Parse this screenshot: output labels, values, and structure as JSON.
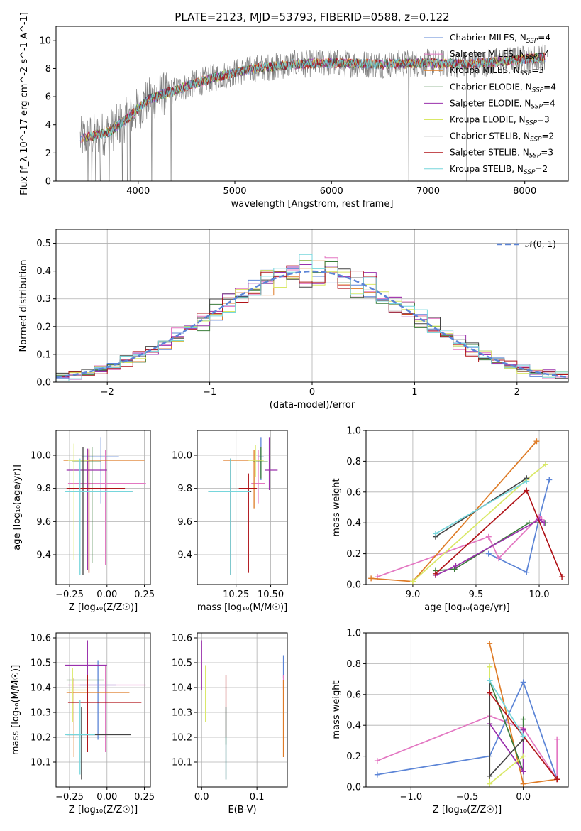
{
  "figure_title": "PLATE=2123, MJD=53793, FIBERID=0588, z=0.122",
  "colors": {
    "chabrier_miles": "#5b84d6",
    "salpeter_miles": "#e377c2",
    "kroupa_miles": "#de7b26",
    "chabrier_elodie": "#3b7d3b",
    "salpeter_elodie": "#9a30ac",
    "kroupa_elodie": "#d9e865",
    "chabrier_stelib": "#444444",
    "salpeter_stelib": "#b01318",
    "kroupa_stelib": "#76d6dc",
    "data": "#7f7f7f",
    "gaussian": "#5b84d6"
  },
  "models": [
    {
      "label": "Chabrier MILES, N",
      "sub": "SSP",
      "suffix": "=4",
      "color": "#5b84d6"
    },
    {
      "label": "Salpeter MILES, N",
      "sub": "SSP",
      "suffix": "=4",
      "color": "#e377c2"
    },
    {
      "label": "Kroupa MILES, N",
      "sub": "SSP",
      "suffix": "=3",
      "color": "#de7b26"
    },
    {
      "label": "Chabrier ELODIE, N",
      "sub": "SSP",
      "suffix": "=4",
      "color": "#3b7d3b"
    },
    {
      "label": "Salpeter ELODIE, N",
      "sub": "SSP",
      "suffix": "=4",
      "color": "#9a30ac"
    },
    {
      "label": "Kroupa ELODIE, N",
      "sub": "SSP",
      "suffix": "=3",
      "color": "#d9e865"
    },
    {
      "label": "Chabrier STELIB, N",
      "sub": "SSP",
      "suffix": "=2",
      "color": "#444444"
    },
    {
      "label": "Salpeter STELIB, N",
      "sub": "SSP",
      "suffix": "=3",
      "color": "#b01318"
    },
    {
      "label": "Kroupa STELIB, N",
      "sub": "SSP",
      "suffix": "=2",
      "color": "#76d6dc"
    }
  ],
  "chart_data": [
    {
      "id": "spectrum",
      "type": "line",
      "xlabel": "wavelength [Angstrom, rest frame]",
      "ylabel": "Flux [f_λ 10^-17 erg cm^-2 s^-1 A^-1]",
      "xlim": [
        3150,
        8450
      ],
      "ylim": [
        0,
        11
      ],
      "xticks": [
        4000,
        5000,
        6000,
        7000,
        8000
      ],
      "yticks": [
        0,
        2,
        4,
        6,
        8,
        10
      ],
      "grid": false,
      "legend": "upper right",
      "continuum_knots": [
        [
          3400,
          3.0
        ],
        [
          3700,
          3.5
        ],
        [
          3900,
          4.5
        ],
        [
          4100,
          5.8
        ],
        [
          4400,
          6.5
        ],
        [
          4800,
          7.4
        ],
        [
          5200,
          8.0
        ],
        [
          5600,
          8.3
        ],
        [
          6000,
          8.4
        ],
        [
          6500,
          8.3
        ],
        [
          7000,
          8.4
        ],
        [
          7400,
          8.3
        ],
        [
          8200,
          8.8
        ]
      ],
      "data_range": [
        3400,
        8210
      ],
      "deep_absorptions": [
        3480,
        3520,
        3560,
        3610,
        3700,
        3835,
        3890,
        3915,
        4140,
        4340,
        6800,
        7400
      ]
    },
    {
      "id": "residuals",
      "type": "histogram",
      "xlabel": "(data-model)/error",
      "ylabel": "Normed distribution",
      "xlim": [
        -2.5,
        2.5
      ],
      "ylim": [
        0,
        0.55
      ],
      "xticks": [
        -2,
        -1,
        0,
        1,
        2
      ],
      "yticks": [
        0.0,
        0.1,
        0.2,
        0.3,
        0.4,
        0.5
      ],
      "bin_width": 0.125,
      "grid": true,
      "legend_label": "𝒩(0, 1)",
      "legend_position": "upper right"
    },
    {
      "id": "age_vs_Z",
      "type": "errorbar",
      "xlabel": "Z [log₁₀(Z/Z☉)]",
      "ylabel": "age  [log₁₀(age/yr)]",
      "xlim": [
        -0.34,
        0.29
      ],
      "ylim": [
        9.22,
        10.15
      ],
      "xticks": [
        -0.25,
        0.0,
        0.25
      ],
      "yticks": [
        9.4,
        9.6,
        9.8,
        10.0
      ],
      "points": [
        {
          "x": -0.04,
          "xerr": [
            0.13,
            0.12
          ],
          "y": 9.99,
          "yerr": [
            0.28,
            0.12
          ]
        },
        {
          "x": -0.01,
          "xerr": [
            0.25,
            0.27
          ],
          "y": 9.83,
          "yerr": [
            0.49,
            0.2
          ]
        },
        {
          "x": -0.12,
          "xerr": [
            0.17,
            0.37
          ],
          "y": 9.97,
          "yerr": [
            0.68,
            0.06
          ]
        },
        {
          "x": -0.1,
          "xerr": [
            0.13,
            0.06
          ],
          "y": 9.96,
          "yerr": [
            0.61,
            0.09
          ]
        },
        {
          "x": -0.13,
          "xerr": [
            0.14,
            0.13
          ],
          "y": 9.91,
          "yerr": [
            0.6,
            0.13
          ]
        },
        {
          "x": -0.22,
          "xerr": [
            0.04,
            0.1
          ],
          "y": 9.97,
          "yerr": [
            0.6,
            0.1
          ]
        },
        {
          "x": -0.16,
          "xerr": [
            0.1,
            0.33
          ],
          "y": 9.78,
          "yerr": [
            0.5,
            0.27
          ]
        },
        {
          "x": -0.12,
          "xerr": [
            0.15,
            0.24
          ],
          "y": 9.8,
          "yerr": [
            0.51,
            0.24
          ]
        },
        {
          "x": -0.18,
          "xerr": [
            0.1,
            0.35
          ],
          "y": 9.78,
          "yerr": [
            0.5,
            0.2
          ]
        }
      ]
    },
    {
      "id": "age_vs_mass",
      "type": "errorbar",
      "xlabel": "mass [log₁₀(M/M☉)]",
      "ylabel": "",
      "xlim": [
        9.97,
        10.62
      ],
      "ylim": [
        9.22,
        10.15
      ],
      "xticks": [
        10.25,
        10.5
      ],
      "yticks": [
        9.4,
        9.6,
        9.8,
        10.0
      ],
      "points": [
        {
          "x": 10.43,
          "xerr": [
            0.02,
            0.02
          ],
          "y": 9.99,
          "yerr": [
            0.14,
            0.12
          ]
        },
        {
          "x": 10.41,
          "xerr": [
            0.05,
            0.05
          ],
          "y": 9.83,
          "yerr": [
            0.12,
            0.2
          ]
        },
        {
          "x": 10.38,
          "xerr": [
            0.22,
            0.06
          ],
          "y": 9.97,
          "yerr": [
            0.29,
            0.06
          ]
        },
        {
          "x": 10.43,
          "xerr": [
            0.06,
            0.05
          ],
          "y": 9.96,
          "yerr": [
            0.1,
            0.09
          ]
        },
        {
          "x": 10.49,
          "xerr": [
            0.03,
            0.06
          ],
          "y": 9.91,
          "yerr": [
            0.12,
            0.2
          ]
        },
        {
          "x": 10.39,
          "xerr": [
            0.05,
            0.06
          ],
          "y": 9.97,
          "yerr": [
            0.1,
            0.09
          ]
        },
        {
          "x": 10.21,
          "xerr": [
            0.16,
            0.15
          ],
          "y": 9.78,
          "yerr": [
            0.5,
            0.2
          ]
        },
        {
          "x": 10.34,
          "xerr": [
            0.07,
            0.06
          ],
          "y": 9.8,
          "yerr": [
            0.51,
            0.09
          ]
        },
        {
          "x": 10.21,
          "xerr": [
            0.16,
            0.14
          ],
          "y": 9.78,
          "yerr": [
            0.5,
            0.2
          ]
        }
      ]
    },
    {
      "id": "weight_vs_age",
      "type": "line",
      "xlabel": "age  [log₁₀(age/yr)]",
      "ylabel": "mass weight",
      "xlim": [
        8.63,
        10.23
      ],
      "ylim": [
        0,
        1.0
      ],
      "xticks": [
        9.0,
        9.5,
        10.0
      ],
      "yticks": [
        0.0,
        0.2,
        0.4,
        0.6,
        0.8,
        1.0
      ],
      "series": [
        [
          [
            9.6,
            0.2
          ],
          [
            9.9,
            0.08
          ],
          [
            10.0,
            0.43
          ],
          [
            10.08,
            0.68
          ]
        ],
        [
          [
            8.72,
            0.05
          ],
          [
            9.6,
            0.31
          ],
          [
            9.68,
            0.17
          ],
          [
            10.0,
            0.44
          ],
          [
            10.02,
            0.42
          ]
        ],
        [
          [
            8.67,
            0.04
          ],
          [
            9.0,
            0.02
          ],
          [
            9.98,
            0.93
          ]
        ],
        [
          [
            9.18,
            0.09
          ],
          [
            9.33,
            0.1
          ],
          [
            9.92,
            0.4
          ],
          [
            10.05,
            0.4
          ]
        ],
        [
          [
            9.18,
            0.06
          ],
          [
            9.34,
            0.12
          ],
          [
            10.0,
            0.42
          ],
          [
            10.04,
            0.4
          ]
        ],
        [
          [
            9.0,
            0.02
          ],
          [
            9.9,
            0.68
          ],
          [
            10.05,
            0.78
          ]
        ],
        [
          [
            9.18,
            0.31
          ],
          [
            9.9,
            0.69
          ]
        ],
        [
          [
            9.18,
            0.07
          ],
          [
            9.9,
            0.61
          ],
          [
            10.18,
            0.05
          ]
        ],
        [
          [
            9.18,
            0.33
          ],
          [
            9.9,
            0.67
          ]
        ]
      ]
    },
    {
      "id": "mass_vs_Z",
      "type": "errorbar",
      "xlabel": "Z [log₁₀(Z/Z☉)]",
      "ylabel": "mass [log₁₀(M/M☉)]",
      "xlim": [
        -0.34,
        0.29
      ],
      "ylim": [
        10.0,
        10.62
      ],
      "xticks": [
        -0.25,
        0.0,
        0.25
      ],
      "yticks": [
        10.1,
        10.2,
        10.3,
        10.4,
        10.5,
        10.6
      ],
      "points": [
        {
          "x": -0.06,
          "xerr": [
            0.12,
            0.12
          ],
          "y": 10.41,
          "yerr": [
            0.22,
            0.1
          ]
        },
        {
          "x": -0.01,
          "xerr": [
            0.25,
            0.27
          ],
          "y": 10.41,
          "yerr": [
            0.27,
            0.08
          ]
        },
        {
          "x": -0.22,
          "xerr": [
            0.05,
            0.37
          ],
          "y": 10.38,
          "yerr": [
            0.26,
            0.06
          ]
        },
        {
          "x": -0.13,
          "xerr": [
            0.14,
            0.11
          ],
          "y": 10.43,
          "yerr": [
            0.18,
            0.05
          ]
        },
        {
          "x": -0.13,
          "xerr": [
            0.15,
            0.13
          ],
          "y": 10.49,
          "yerr": [
            0.23,
            0.1
          ]
        },
        {
          "x": -0.23,
          "xerr": [
            0.04,
            0.1
          ],
          "y": 10.39,
          "yerr": [
            0.13,
            0.09
          ]
        },
        {
          "x": -0.17,
          "xerr": [
            0.1,
            0.33
          ],
          "y": 10.21,
          "yerr": [
            0.18,
            0.11
          ]
        },
        {
          "x": -0.13,
          "xerr": [
            0.13,
            0.36
          ],
          "y": 10.34,
          "yerr": [
            0.2,
            0.11
          ]
        },
        {
          "x": -0.18,
          "xerr": [
            0.1,
            0.1
          ],
          "y": 10.21,
          "yerr": [
            0.16,
            0.14
          ]
        }
      ]
    },
    {
      "id": "mass_vs_ebv",
      "type": "errorbar",
      "xlabel": "E(B-V)",
      "ylabel": "",
      "xlim": [
        -0.008,
        0.155
      ],
      "ylim": [
        10.0,
        10.62
      ],
      "xticks": [
        0.0,
        0.1
      ],
      "yticks": [
        10.1,
        10.2,
        10.3,
        10.4,
        10.5,
        10.6
      ],
      "points": [
        {
          "x": 0.148,
          "xerr": [
            0,
            0
          ],
          "y": 10.47,
          "yerr": [
            0.03,
            0.06
          ]
        },
        {
          "x": 0.148,
          "xerr": [
            0,
            0
          ],
          "y": 10.42,
          "yerr": [
            0.03,
            0.03
          ]
        },
        {
          "x": 0.148,
          "xerr": [
            0,
            0
          ],
          "y": 10.38,
          "yerr": [
            0.26,
            0.05
          ]
        },
        {
          "x": 0.044,
          "xerr": [
            0,
            0
          ],
          "y": 10.25,
          "yerr": [
            0.08,
            0.07
          ]
        },
        {
          "x": 0.0,
          "xerr": [
            0,
            0
          ],
          "y": 10.49,
          "yerr": [
            0.1,
            0.1
          ]
        },
        {
          "x": 0.007,
          "xerr": [
            0,
            0
          ],
          "y": 10.39,
          "yerr": [
            0.13,
            0.1
          ]
        },
        {
          "x": 0.044,
          "xerr": [
            0,
            0
          ],
          "y": 10.21,
          "yerr": [
            0.18,
            0.11
          ]
        },
        {
          "x": 0.044,
          "xerr": [
            0,
            0
          ],
          "y": 10.34,
          "yerr": [
            0.14,
            0.11
          ]
        },
        {
          "x": 0.044,
          "xerr": [
            0,
            0
          ],
          "y": 10.21,
          "yerr": [
            0.18,
            0.11
          ]
        }
      ]
    },
    {
      "id": "weight_vs_Z",
      "type": "line",
      "xlabel": "Z [log₁₀(Z/Z☉)]",
      "ylabel": "mass weight",
      "xlim": [
        -1.4,
        0.4
      ],
      "ylim": [
        0,
        1.0
      ],
      "xticks": [
        -1.0,
        -0.5,
        0.0
      ],
      "yticks": [
        0.0,
        0.2,
        0.4,
        0.6,
        0.8,
        1.0
      ],
      "series": [
        [
          [
            -1.3,
            0.08
          ],
          [
            -0.3,
            0.2
          ],
          [
            0.0,
            0.68
          ],
          [
            0.3,
            0.05
          ]
        ],
        [
          [
            -1.3,
            0.17
          ],
          [
            -0.3,
            0.46
          ],
          [
            0.0,
            0.38
          ],
          [
            0.3,
            0.05
          ],
          [
            0.3,
            0.31
          ]
        ],
        [
          [
            -0.3,
            0.93
          ],
          [
            0.0,
            0.02
          ],
          [
            0.3,
            0.05
          ]
        ],
        [
          [
            -0.3,
            0.69
          ],
          [
            0.0,
            0.1
          ],
          [
            0.0,
            0.44
          ]
        ],
        [
          [
            -0.3,
            0.41
          ],
          [
            0.0,
            0.1
          ],
          [
            0.0,
            0.37
          ]
        ],
        [
          [
            -0.3,
            0.78
          ],
          [
            -0.3,
            0.02
          ],
          [
            0.0,
            0.2
          ]
        ],
        [
          [
            -0.3,
            0.69
          ],
          [
            -0.3,
            0.07
          ],
          [
            0.0,
            0.31
          ]
        ],
        [
          [
            -0.3,
            0.61
          ],
          [
            0.3,
            0.05
          ],
          [
            0.3,
            0.05
          ]
        ],
        [
          [
            -0.3,
            0.69
          ],
          [
            0.0,
            0.33
          ]
        ]
      ]
    }
  ]
}
